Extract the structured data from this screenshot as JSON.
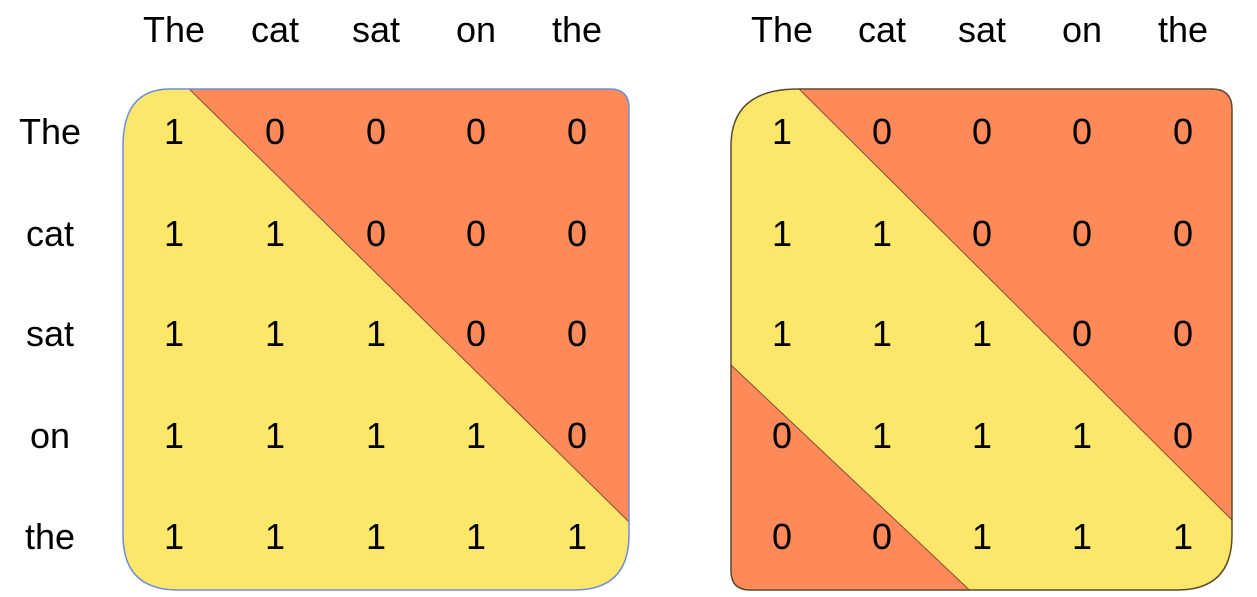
{
  "colors": {
    "allowed": "#fce76b",
    "masked": "#fd8a58",
    "panel1_border": "#6f8fd9",
    "panel2_border": "#5a4a2a"
  },
  "panels": [
    {
      "column_labels": [
        "The",
        "cat",
        "sat",
        "on",
        "the"
      ],
      "row_labels": [
        "The",
        "cat",
        "sat",
        "on",
        "the"
      ],
      "matrix": [
        [
          "1",
          "0",
          "0",
          "0",
          "0"
        ],
        [
          "1",
          "1",
          "0",
          "0",
          "0"
        ],
        [
          "1",
          "1",
          "1",
          "0",
          "0"
        ],
        [
          "1",
          "1",
          "1",
          "1",
          "0"
        ],
        [
          "1",
          "1",
          "1",
          "1",
          "1"
        ]
      ]
    },
    {
      "column_labels": [
        "The",
        "cat",
        "sat",
        "on",
        "the"
      ],
      "matrix": [
        [
          "1",
          "0",
          "0",
          "0",
          "0"
        ],
        [
          "1",
          "1",
          "0",
          "0",
          "0"
        ],
        [
          "1",
          "1",
          "1",
          "0",
          "0"
        ],
        [
          "0",
          "1",
          "1",
          "1",
          "0"
        ],
        [
          "0",
          "0",
          "1",
          "1",
          "1"
        ]
      ]
    }
  ]
}
